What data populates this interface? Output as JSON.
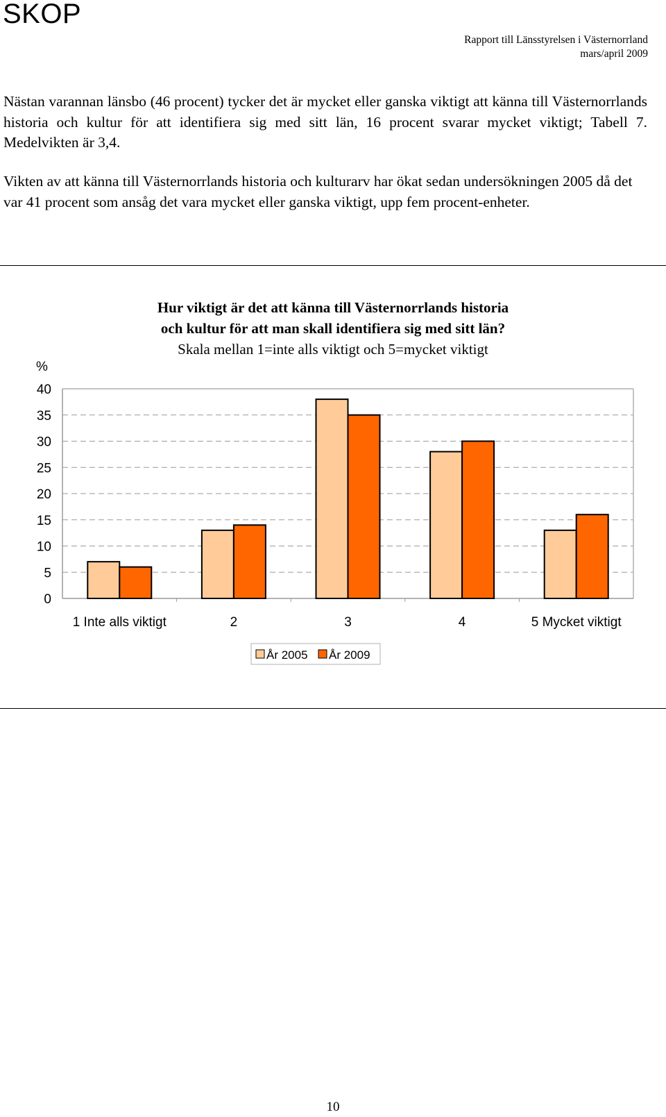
{
  "header": {
    "logo": "SKOP",
    "report_line": "Rapport  till  Länsstyrelsen i Västernorrland",
    "date_line": "mars/april 2009"
  },
  "body": {
    "paragraph_1": "Nästan varannan länsbo (46 procent) tycker det är mycket eller ganska viktigt att känna till Västernorrlands historia och kultur för att identifiera sig med sitt län, 16 procent svarar mycket viktigt; Tabell 7. Medelvikten är 3,4.",
    "paragraph_2": "Vikten av att känna till  Västernorrlands historia och kulturarv har ökat sedan undersökningen 2005 då det var 41 procent som ansåg det vara mycket eller ganska viktigt, upp fem procent-enheter."
  },
  "chart_data": {
    "type": "bar",
    "title_line_1": "Hur viktigt är det att känna till Västernorrlands historia",
    "title_line_2": "och kultur för att man skall identifiera sig med sitt län?",
    "subtitle": "Skala mellan 1=inte alls viktigt och 5=mycket viktigt",
    "ylabel": "%",
    "ylim": [
      0,
      40
    ],
    "yticks": [
      0,
      5,
      10,
      15,
      20,
      25,
      30,
      35,
      40
    ],
    "grid": "horizontal dashed",
    "legend_position": "bottom",
    "categories": [
      "1 Inte alls viktigt",
      "2",
      "3",
      "4",
      "5 Mycket viktigt"
    ],
    "series": [
      {
        "name": "År 2005",
        "color": "#FFCC99",
        "values": [
          7,
          13,
          38,
          28,
          13
        ]
      },
      {
        "name": "År 2009",
        "color": "#FF6600",
        "values": [
          6,
          14,
          35,
          30,
          16
        ]
      }
    ]
  },
  "footer": {
    "page_number": "10"
  }
}
